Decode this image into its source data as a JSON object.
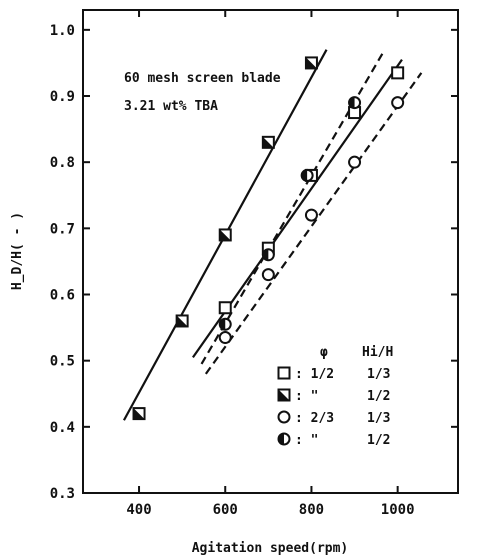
{
  "chart_data": {
    "type": "scatter",
    "xlabel": "Agitation speed(rpm)",
    "ylabel": "H_D/H( - )",
    "xlim": [
      270,
      1140
    ],
    "ylim": [
      0.3,
      1.03
    ],
    "xticks": [
      400,
      600,
      800,
      1000
    ],
    "yticks": [
      0.3,
      0.4,
      0.5,
      0.6,
      0.7,
      0.8,
      0.9,
      1.0
    ],
    "tick_labels_x": [
      "400",
      "600",
      "800",
      "1000"
    ],
    "tick_labels_y": [
      "0.3",
      "0.4",
      "0.5",
      "0.6",
      "0.7",
      "0.8",
      "0.9",
      "1.0"
    ],
    "annotations": [
      "60 mesh screen blade",
      "3.21 wt% TBA"
    ],
    "legend_header": {
      "phi": "φ",
      "ratio": "Hi/H"
    },
    "series": [
      {
        "marker": "square-open",
        "line": "solid",
        "phi_label": ": 1/2",
        "ratio_label": "1/3",
        "x": [
          600,
          700,
          800,
          900,
          1000
        ],
        "y": [
          0.58,
          0.67,
          0.78,
          0.875,
          0.935
        ],
        "fit": [
          [
            525,
            0.505
          ],
          [
            1010,
            0.955
          ]
        ]
      },
      {
        "marker": "square-half",
        "line": "solid",
        "phi_label": ": \"",
        "ratio_label": "1/2",
        "x": [
          400,
          500,
          600,
          700,
          800
        ],
        "y": [
          0.42,
          0.56,
          0.69,
          0.83,
          0.95
        ],
        "fit": [
          [
            365,
            0.41
          ],
          [
            835,
            0.97
          ]
        ]
      },
      {
        "marker": "circle-open",
        "line": "dashed",
        "phi_label": ": 2/3",
        "ratio_label": "1/3",
        "x": [
          600,
          700,
          800,
          900,
          1000
        ],
        "y": [
          0.535,
          0.63,
          0.72,
          0.8,
          0.89
        ],
        "fit": [
          [
            555,
            0.48
          ],
          [
            1055,
            0.935
          ]
        ]
      },
      {
        "marker": "circle-half",
        "line": "dashed",
        "phi_label": ": \"",
        "ratio_label": "1/2",
        "x": [
          600,
          700,
          790,
          900
        ],
        "y": [
          0.555,
          0.66,
          0.78,
          0.89
        ],
        "fit": [
          [
            545,
            0.495
          ],
          [
            970,
            0.97
          ]
        ]
      }
    ]
  }
}
